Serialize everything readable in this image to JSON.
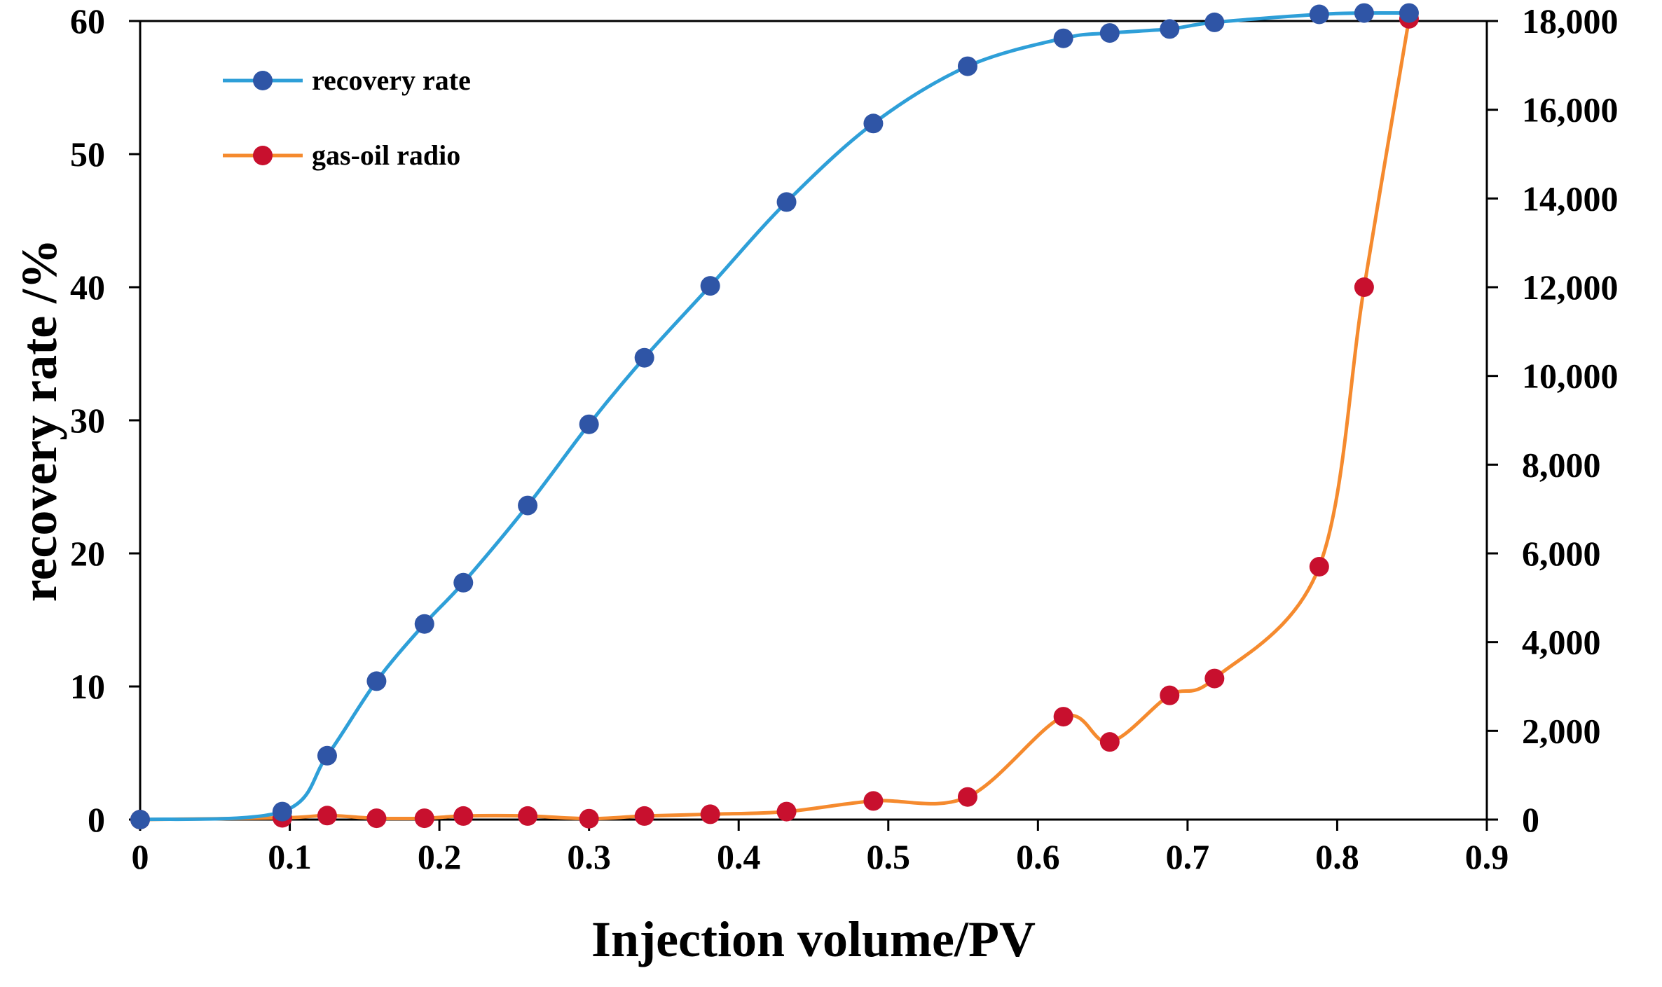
{
  "chart_data": {
    "type": "line",
    "title": "",
    "xlabel": "Injection volume/PV",
    "ylabel": "recovery rate /%",
    "y2label": "",
    "xlim": [
      0,
      0.9
    ],
    "ylim": [
      0,
      60
    ],
    "y2lim": [
      0,
      18000
    ],
    "xticks": [
      "0",
      "0.1",
      "0.2",
      "0.3",
      "0.4",
      "0.5",
      "0.6",
      "0.7",
      "0.8",
      "0.9"
    ],
    "yticks": [
      "0",
      "10",
      "20",
      "30",
      "40",
      "50",
      "60"
    ],
    "y2ticks": [
      "0",
      "2,000",
      "4,000",
      "6,000",
      "8,000",
      "10,000",
      "12,000",
      "14,000",
      "16,000",
      "18,000"
    ],
    "legend_position": "top-left",
    "series": [
      {
        "name": "recovery rate",
        "axis": "left",
        "line_color": "#2e9fd8",
        "marker_color": "#2f55a6",
        "x": [
          0,
          0.095,
          0.125,
          0.158,
          0.19,
          0.216,
          0.259,
          0.3,
          0.337,
          0.381,
          0.432,
          0.49,
          0.553,
          0.617,
          0.648,
          0.688,
          0.718,
          0.788,
          0.818,
          0.848
        ],
        "values": [
          0,
          0.6,
          4.8,
          10.4,
          14.7,
          17.8,
          23.6,
          29.7,
          34.7,
          40.1,
          46.4,
          52.3,
          56.6,
          58.7,
          59.1,
          59.4,
          59.9,
          60.5,
          60.6,
          60.6
        ]
      },
      {
        "name": "gas-oil radio",
        "axis": "right",
        "line_color": "#f58a2e",
        "marker_color": "#c8102e",
        "x": [
          0,
          0.095,
          0.125,
          0.158,
          0.19,
          0.216,
          0.259,
          0.3,
          0.337,
          0.381,
          0.432,
          0.49,
          0.553,
          0.617,
          0.648,
          0.688,
          0.718,
          0.788,
          0.818,
          0.848
        ],
        "values": [
          0,
          40,
          90,
          30,
          30,
          80,
          80,
          20,
          80,
          120,
          180,
          420,
          510,
          2320,
          1750,
          2800,
          3180,
          5700,
          12000,
          18050
        ]
      }
    ]
  }
}
